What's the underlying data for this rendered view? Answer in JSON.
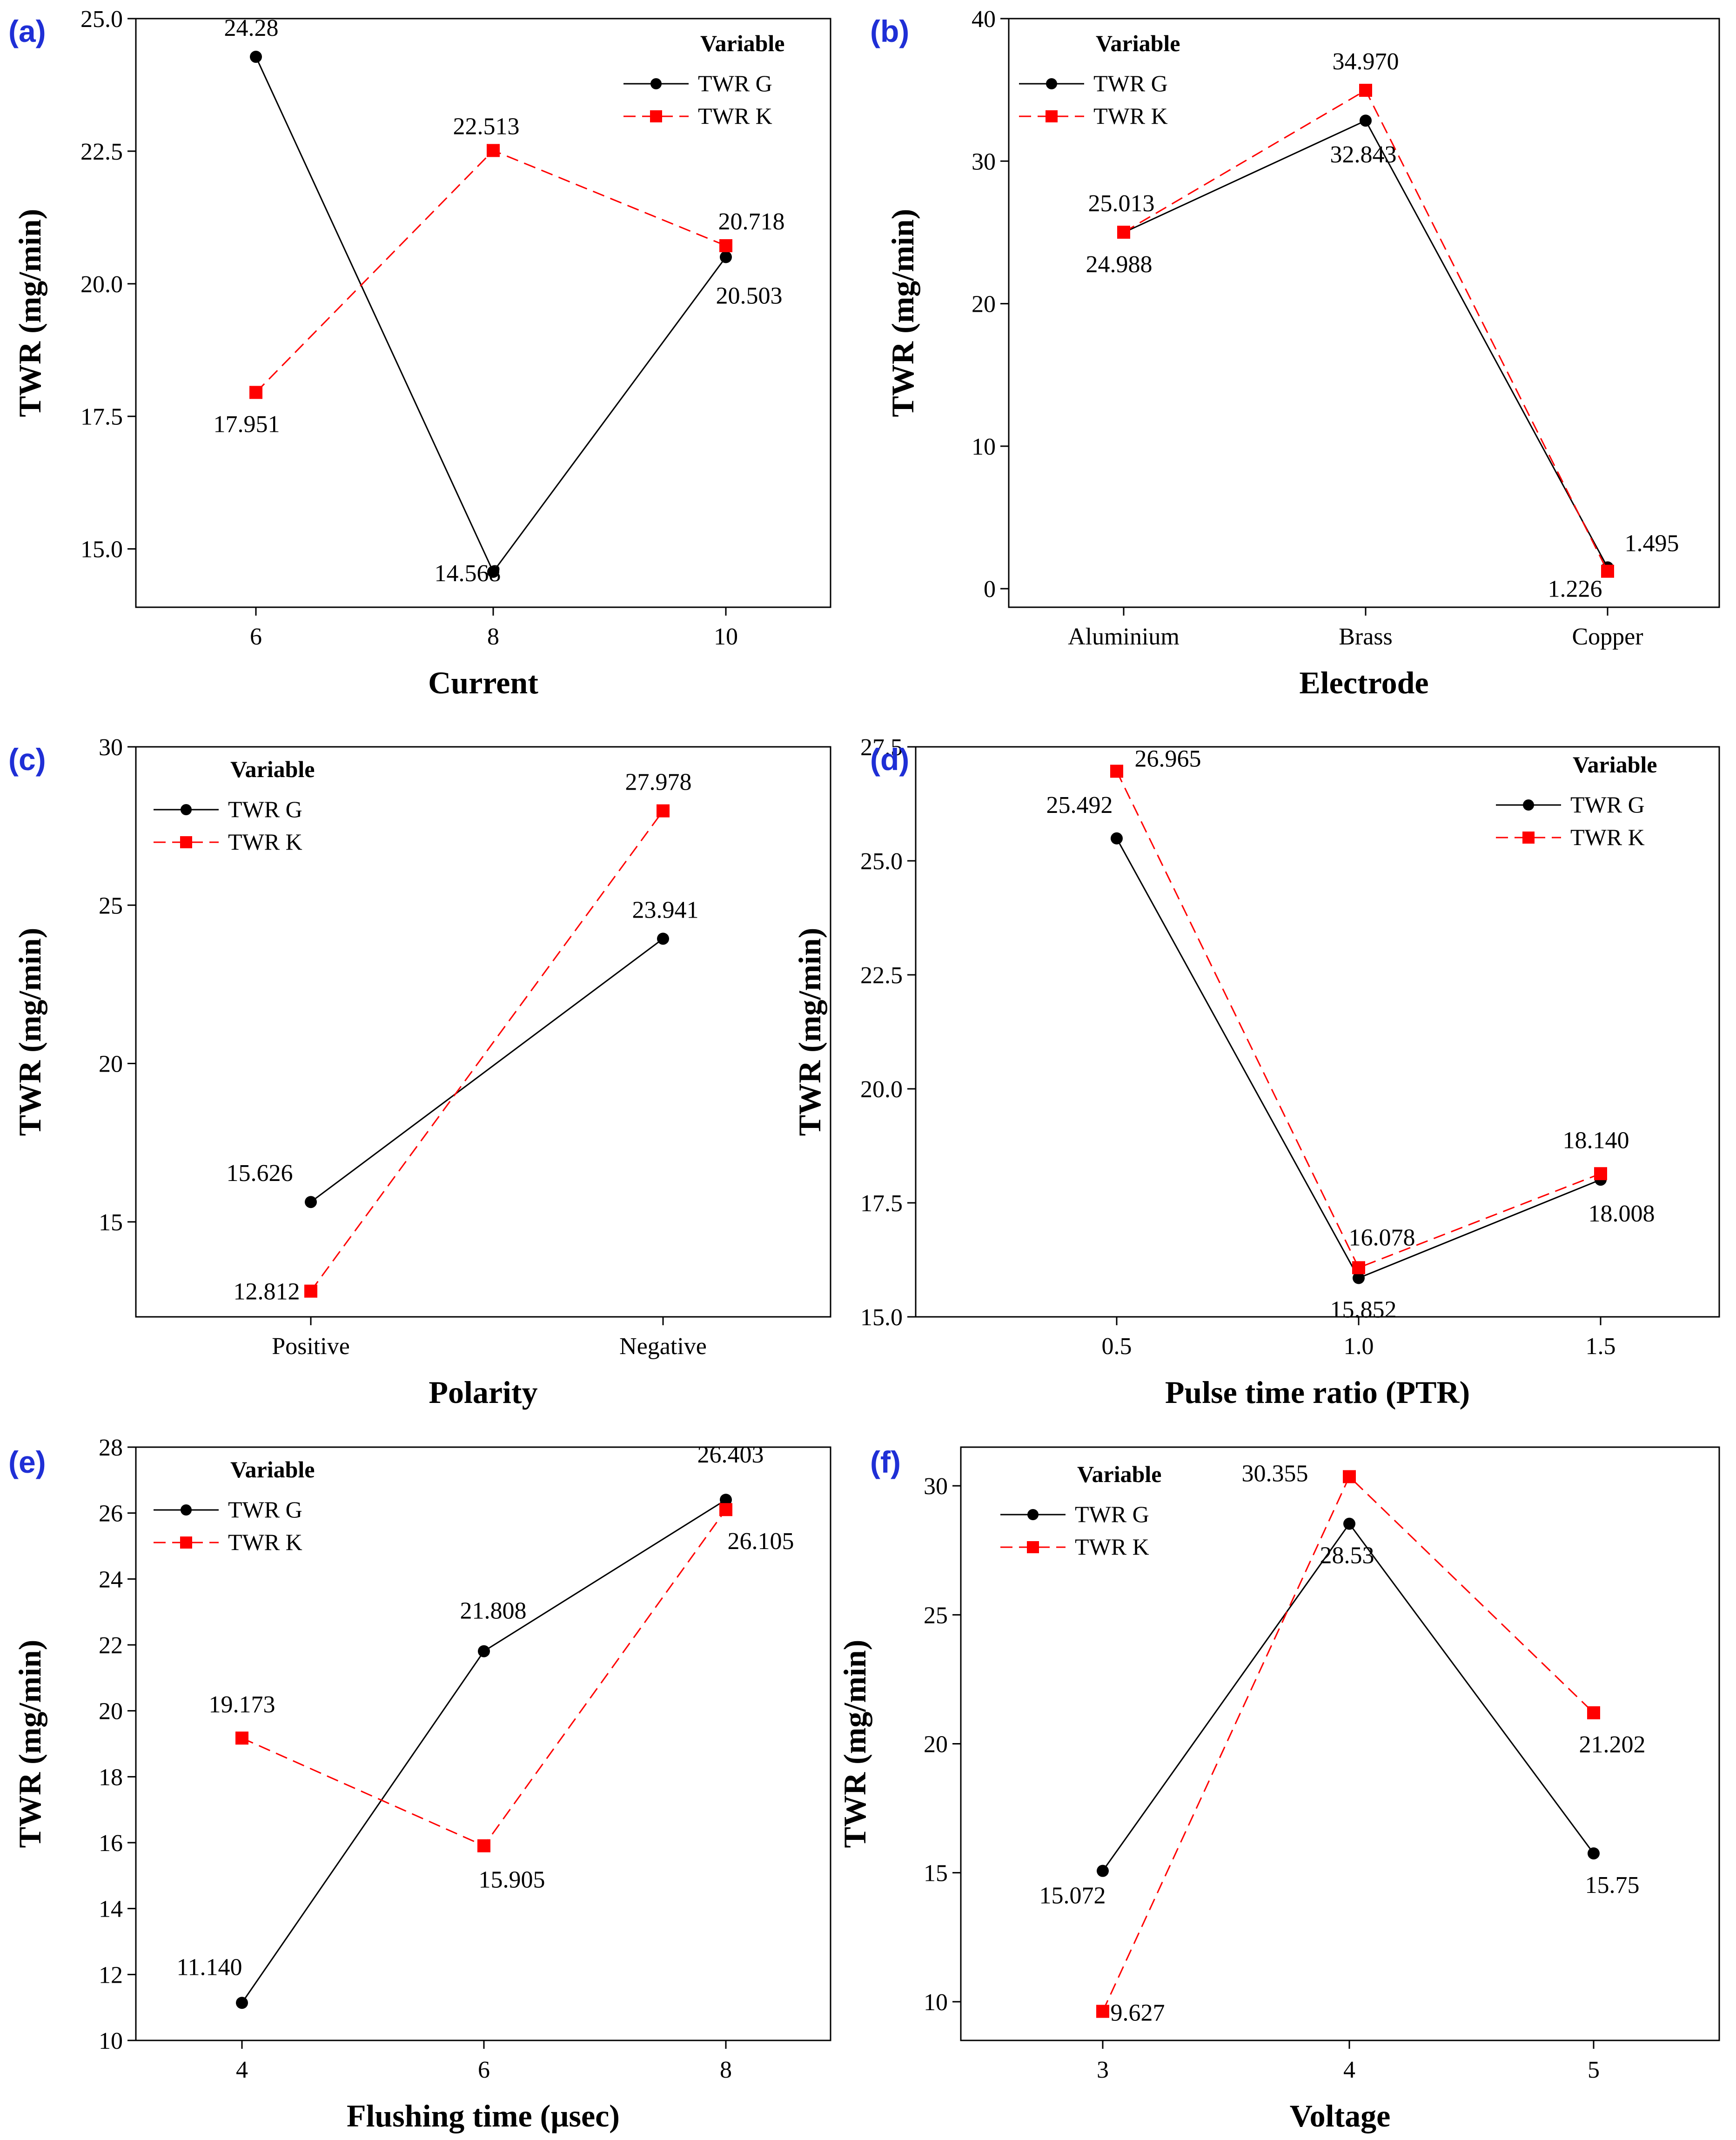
{
  "figure": {
    "panel_labels": [
      "(a)",
      "(b)",
      "(c)",
      "(d)",
      "(e)",
      "(f)"
    ]
  },
  "legend": {
    "title": "Variable",
    "series_g": "TWR G",
    "series_k": "TWR K"
  },
  "colors": {
    "series_g": "#000000",
    "series_k": "#ff0000",
    "panel_label": "#1f2fd6",
    "axes": "#000000"
  },
  "chart_data": [
    {
      "id": "a",
      "type": "line",
      "xlabel": "Current",
      "ylabel": "TWR (mg/min)",
      "categories": [
        "6",
        "8",
        "10"
      ],
      "ylim": [
        13.9,
        25.0
      ],
      "yticks": [
        "15.0",
        "17.5",
        "20.0",
        "22.5",
        "25.0"
      ],
      "ytick_values": [
        15.0,
        17.5,
        20.0,
        22.5,
        25.0
      ],
      "legend_position": "top-right",
      "series": [
        {
          "name": "TWR G",
          "values": [
            24.28,
            14.568,
            20.503
          ],
          "labels": [
            "24.28",
            "14.568",
            "20.503"
          ]
        },
        {
          "name": "TWR K",
          "values": [
            17.951,
            22.513,
            20.718
          ],
          "labels": [
            "17.951",
            "22.513",
            "20.718"
          ]
        }
      ]
    },
    {
      "id": "b",
      "type": "line",
      "xlabel": "Electrode",
      "ylabel": "TWR (mg/min)",
      "categories": [
        "Aluminium",
        "Brass",
        "Copper"
      ],
      "ylim": [
        -1.3,
        40.0
      ],
      "yticks": [
        "0",
        "10",
        "20",
        "30",
        "40"
      ],
      "ytick_values": [
        0,
        10,
        20,
        30,
        40
      ],
      "legend_position": "top-left",
      "series": [
        {
          "name": "TWR G",
          "values": [
            24.988,
            32.843,
            1.495
          ],
          "labels": [
            "24.988",
            "32.843",
            "1.495"
          ]
        },
        {
          "name": "TWR K",
          "values": [
            25.013,
            34.97,
            1.226
          ],
          "labels": [
            "25.013",
            "34.970",
            "1.226"
          ]
        }
      ]
    },
    {
      "id": "c",
      "type": "line",
      "xlabel": "Polarity",
      "ylabel": "TWR (mg/min)",
      "categories": [
        "Positive",
        "Negative"
      ],
      "ylim": [
        12.0,
        30.0
      ],
      "yticks": [
        "15",
        "20",
        "25",
        "30"
      ],
      "ytick_values": [
        15,
        20,
        25,
        30
      ],
      "legend_position": "top-left",
      "series": [
        {
          "name": "TWR G",
          "values": [
            15.626,
            23.941
          ],
          "labels": [
            "15.626",
            "23.941"
          ]
        },
        {
          "name": "TWR K",
          "values": [
            12.812,
            27.978
          ],
          "labels": [
            "12.812",
            "27.978"
          ]
        }
      ]
    },
    {
      "id": "d",
      "type": "line",
      "xlabel": "Pulse time ratio (PTR)",
      "ylabel": "TWR (mg/min)",
      "categories": [
        "0.5",
        "1.0",
        "1.5"
      ],
      "ylim": [
        15.0,
        27.5
      ],
      "yticks": [
        "15.0",
        "17.5",
        "20.0",
        "22.5",
        "25.0",
        "27.5"
      ],
      "ytick_values": [
        15.0,
        17.5,
        20.0,
        22.5,
        25.0,
        27.5
      ],
      "legend_position": "top-right",
      "series": [
        {
          "name": "TWR G",
          "values": [
            25.492,
            15.852,
            18.008
          ],
          "labels": [
            "25.492",
            "15.852",
            "18.008"
          ]
        },
        {
          "name": "TWR K",
          "values": [
            26.965,
            16.078,
            18.14
          ],
          "labels": [
            "26.965",
            "16.078",
            "18.140"
          ]
        }
      ]
    },
    {
      "id": "e",
      "type": "line",
      "xlabel": "Flushing time (µsec)",
      "ylabel": "TWR (mg/min)",
      "categories": [
        "4",
        "6",
        "8"
      ],
      "ylim": [
        10.0,
        28.0
      ],
      "yticks": [
        "10",
        "12",
        "14",
        "16",
        "18",
        "20",
        "22",
        "24",
        "26",
        "28"
      ],
      "ytick_values": [
        10,
        12,
        14,
        16,
        18,
        20,
        22,
        24,
        26,
        28
      ],
      "legend_position": "top-left",
      "series": [
        {
          "name": "TWR G",
          "values": [
            11.14,
            21.808,
            26.403
          ],
          "labels": [
            "11.140",
            "21.808",
            "26.403"
          ]
        },
        {
          "name": "TWR K",
          "values": [
            19.173,
            15.905,
            26.105
          ],
          "labels": [
            "19.173",
            "15.905",
            "26.105"
          ]
        }
      ]
    },
    {
      "id": "f",
      "type": "line",
      "xlabel": "Voltage",
      "ylabel": "TWR (mg/min)",
      "categories": [
        "3",
        "4",
        "5"
      ],
      "ylim": [
        8.5,
        31.5
      ],
      "yticks": [
        "10",
        "15",
        "20",
        "25",
        "30"
      ],
      "ytick_values": [
        10,
        15,
        20,
        25,
        30
      ],
      "legend_position": "top-left",
      "series": [
        {
          "name": "TWR G",
          "values": [
            15.072,
            28.53,
            15.75
          ],
          "labels": [
            "15.072",
            "28.53",
            "15.75"
          ]
        },
        {
          "name": "TWR K",
          "values": [
            9.627,
            30.355,
            21.202
          ],
          "labels": [
            "9.627",
            "30.355",
            "21.202"
          ]
        }
      ]
    }
  ]
}
